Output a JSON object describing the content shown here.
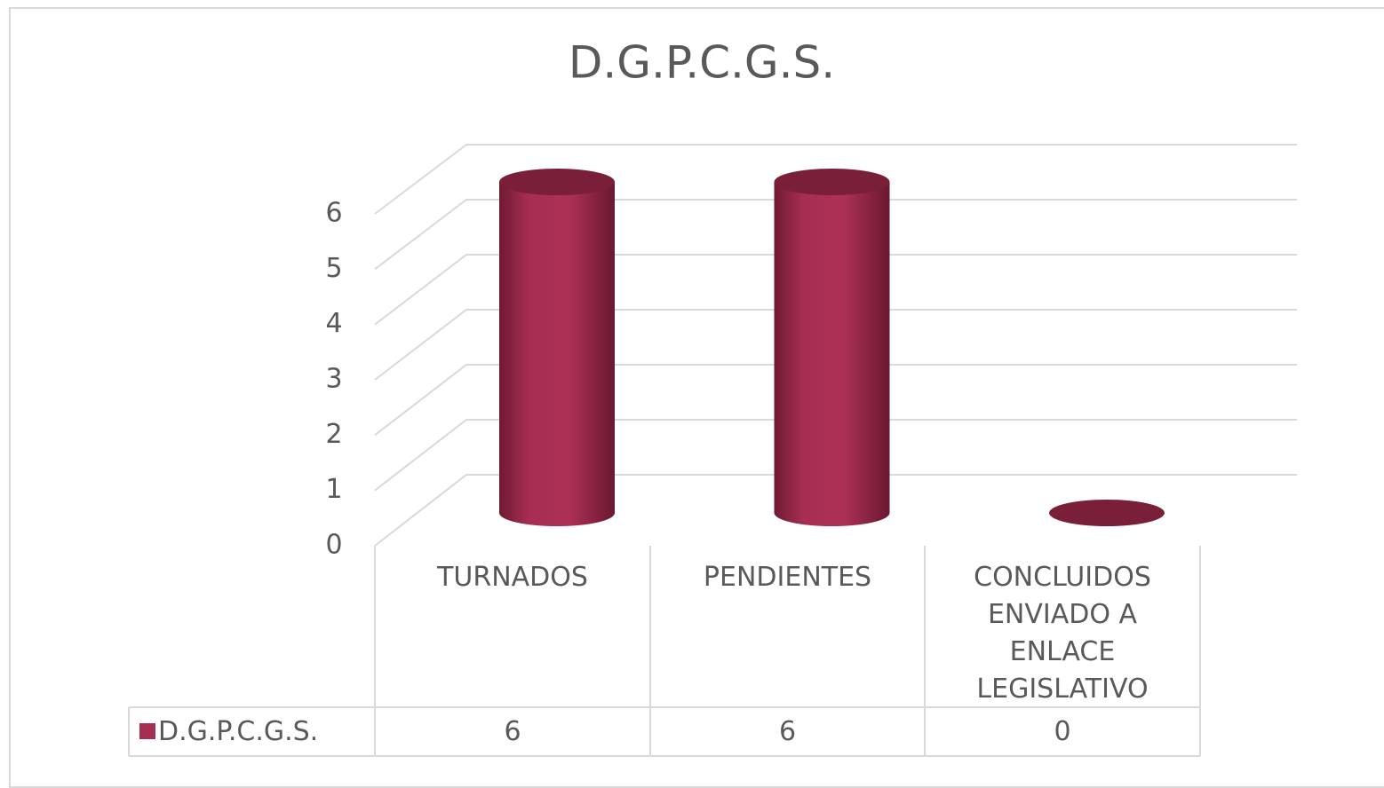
{
  "chart_data": {
    "type": "bar",
    "title": "D.G.P.C.G.S.",
    "categories": [
      "TURNADOS",
      "PENDIENTES",
      "CONCLUIDOS ENVIADO A ENLACE LEGISLATIVO"
    ],
    "series": [
      {
        "name": "D.G.P.C.G.S.",
        "color": "#a62e50",
        "values": [
          6,
          6,
          0
        ]
      }
    ],
    "ylim": [
      0,
      6
    ],
    "yticks": [
      0,
      1,
      2,
      3,
      4,
      5,
      6
    ],
    "grid": true
  }
}
